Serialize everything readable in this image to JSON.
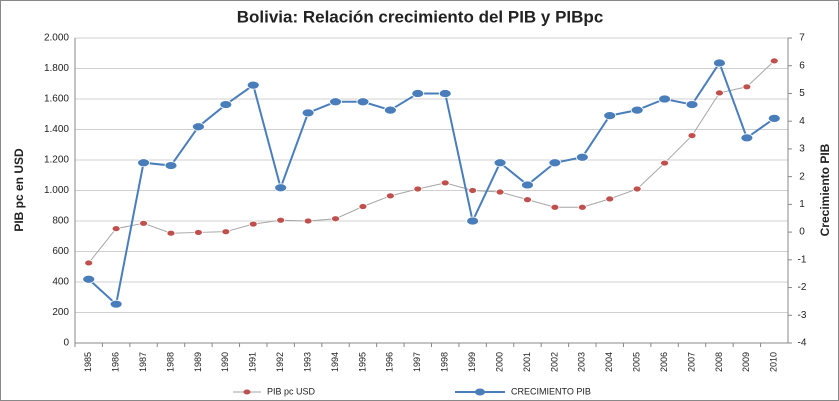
{
  "chart_data": {
    "type": "line",
    "title": "Bolivia: Relación crecimiento del PIB y PIBpc",
    "y_label": "PIB pc en USD",
    "y2_label": "Crecimiento PIB",
    "categories": [
      "1985",
      "1986",
      "1987",
      "1988",
      "1989",
      "1990",
      "1991",
      "1992",
      "1993",
      "1994",
      "1995",
      "1996",
      "1997",
      "1998",
      "1999",
      "2000",
      "2001",
      "2002",
      "2003",
      "2004",
      "2005",
      "2006",
      "2007",
      "2008",
      "2009",
      "2010"
    ],
    "series": [
      {
        "name": "PIB pc USD",
        "color": "#c0504d",
        "axis": "y",
        "values": [
          525,
          750,
          785,
          720,
          725,
          730,
          780,
          805,
          800,
          815,
          895,
          965,
          1010,
          1050,
          1000,
          990,
          940,
          890,
          890,
          945,
          1010,
          1180,
          1360,
          1640,
          1680,
          1850
        ]
      },
      {
        "name": "CRECIMIENTO  PIB",
        "color": "#4a7ebb",
        "axis": "y2",
        "values": [
          -1.7,
          -2.6,
          2.5,
          2.4,
          3.8,
          4.6,
          5.3,
          1.6,
          4.3,
          4.7,
          4.7,
          4.4,
          5.0,
          5.0,
          0.4,
          2.5,
          1.7,
          2.5,
          2.7,
          4.2,
          4.4,
          4.8,
          4.6,
          6.1,
          3.4,
          4.1
        ]
      }
    ],
    "ylim": [
      0,
      2000
    ],
    "yticks": [
      0,
      {
        "value": 200,
        "label": "200"
      },
      {
        "value": 400,
        "label": "400"
      },
      {
        "value": 600,
        "label": "600"
      },
      {
        "value": 800,
        "label": "800"
      },
      {
        "value": 1000,
        "label": "1.000"
      },
      {
        "value": 1200,
        "label": "1.200"
      },
      {
        "value": 1400,
        "label": "1.400"
      },
      {
        "value": 1600,
        "label": "1.600"
      },
      {
        "value": 1800,
        "label": "1.800"
      },
      {
        "value": 2000,
        "label": "2.000"
      }
    ],
    "y2lim": [
      -4,
      7
    ],
    "y2ticks": [
      -4,
      -3,
      -2,
      -1,
      0,
      1,
      2,
      3,
      4,
      5,
      6,
      7
    ],
    "grid": true,
    "legend": "bottom"
  }
}
